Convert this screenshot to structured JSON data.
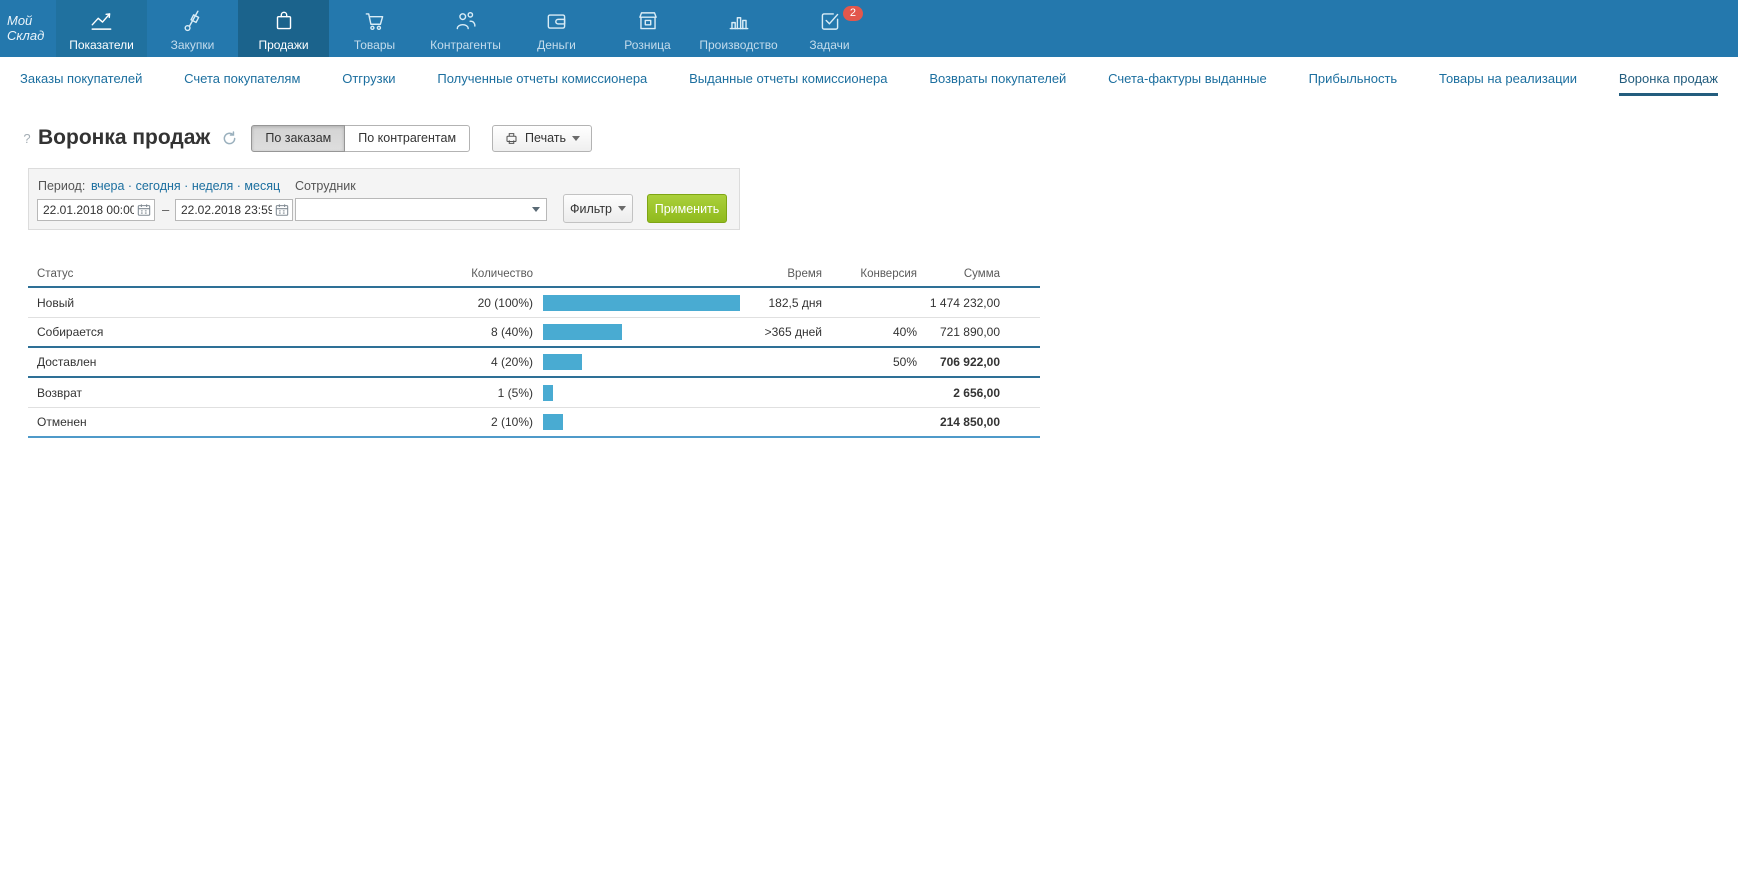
{
  "app": {
    "logo_line1": "Мой",
    "logo_line2": "Склад"
  },
  "topnav": {
    "items": [
      {
        "label": "Показатели",
        "icon": "chart-line-icon",
        "state": "highlight"
      },
      {
        "label": "Закупки",
        "icon": "handtruck-icon",
        "state": ""
      },
      {
        "label": "Продажи",
        "icon": "shopping-bag-icon",
        "state": "active"
      },
      {
        "label": "Товары",
        "icon": "cart-icon",
        "state": ""
      },
      {
        "label": "Контрагенты",
        "icon": "people-icon",
        "state": ""
      },
      {
        "label": "Деньги",
        "icon": "wallet-icon",
        "state": ""
      },
      {
        "label": "Розница",
        "icon": "storefront-icon",
        "state": ""
      },
      {
        "label": "Производство",
        "icon": "bar-chart-icon",
        "state": ""
      },
      {
        "label": "Задачи",
        "icon": "task-check-icon",
        "state": "",
        "badge": "2"
      }
    ]
  },
  "subnav": {
    "items": [
      "Заказы покупателей",
      "Счета покупателям",
      "Отгрузки",
      "Полученные отчеты комиссионера",
      "Выданные отчеты комиссионера",
      "Возвраты покупателей",
      "Счета-фактуры выданные",
      "Прибыльность",
      "Товары на реализации",
      "Воронка продаж"
    ],
    "active": "Воронка продаж"
  },
  "header": {
    "help": "?",
    "title": "Воронка продаж",
    "toggle": {
      "by_orders": "По заказам",
      "by_counterparties": "По контрагентам",
      "active": "По заказам"
    },
    "print_label": "Печать"
  },
  "filters": {
    "period_label": "Период:",
    "period_links": [
      "вчера",
      "сегодня",
      "неделя",
      "месяц"
    ],
    "date_from": "22.01.2018 00:00",
    "date_to": "22.02.2018 23:59",
    "range_dash": "–",
    "employee_label": "Сотрудник",
    "employee_value": "",
    "filter_button": "Фильтр",
    "apply_button": "Применить"
  },
  "chart_data": {
    "type": "bar",
    "title": "Воронка продаж",
    "columns": [
      "Статус",
      "Количество",
      "Время",
      "Конверсия",
      "Сумма"
    ],
    "categories": [
      "Новый",
      "Собирается",
      "Доставлен",
      "Возврат",
      "Отменен"
    ],
    "values": [
      20,
      8,
      4,
      1,
      2
    ],
    "rows": [
      {
        "status": "Новый",
        "count": "20 (100%)",
        "bar_pct": 100,
        "time": "182,5 дня",
        "conversion": "",
        "sum": "1 474 232,00",
        "bold_sum": false,
        "divider_after": "thin"
      },
      {
        "status": "Собирается",
        "count": "8 (40%)",
        "bar_pct": 40,
        "time": ">365 дней",
        "conversion": "40%",
        "sum": "721 890,00",
        "bold_sum": false,
        "divider_after": "thick"
      },
      {
        "status": "Доставлен",
        "count": "4 (20%)",
        "bar_pct": 20,
        "time": "",
        "conversion": "50%",
        "sum": "706 922,00",
        "bold_sum": true,
        "divider_after": "thick"
      },
      {
        "status": "Возврат",
        "count": "1 (5%)",
        "bar_pct": 5,
        "time": "",
        "conversion": "",
        "sum": "2 656,00",
        "bold_sum": true,
        "divider_after": "thin"
      },
      {
        "status": "Отменен",
        "count": "2 (10%)",
        "bar_pct": 10,
        "time": "",
        "conversion": "",
        "sum": "214 850,00",
        "bold_sum": true,
        "divider_after": "bottom"
      }
    ],
    "bar_color": "#49abd2",
    "bar_max_pct": 100
  },
  "colors": {
    "topbar": "#2478ad",
    "tile-hi": "#20719f",
    "tile-act": "#1b638c",
    "link": "#1c6f9f",
    "badge": "#e2574c",
    "bar": "#49abd2",
    "divider": "#2e7096",
    "divider-end": "#4f9ac9",
    "apply": "#90ba1d",
    "apply-hi": "#abd03b",
    "apply-border": "#7ea514"
  }
}
